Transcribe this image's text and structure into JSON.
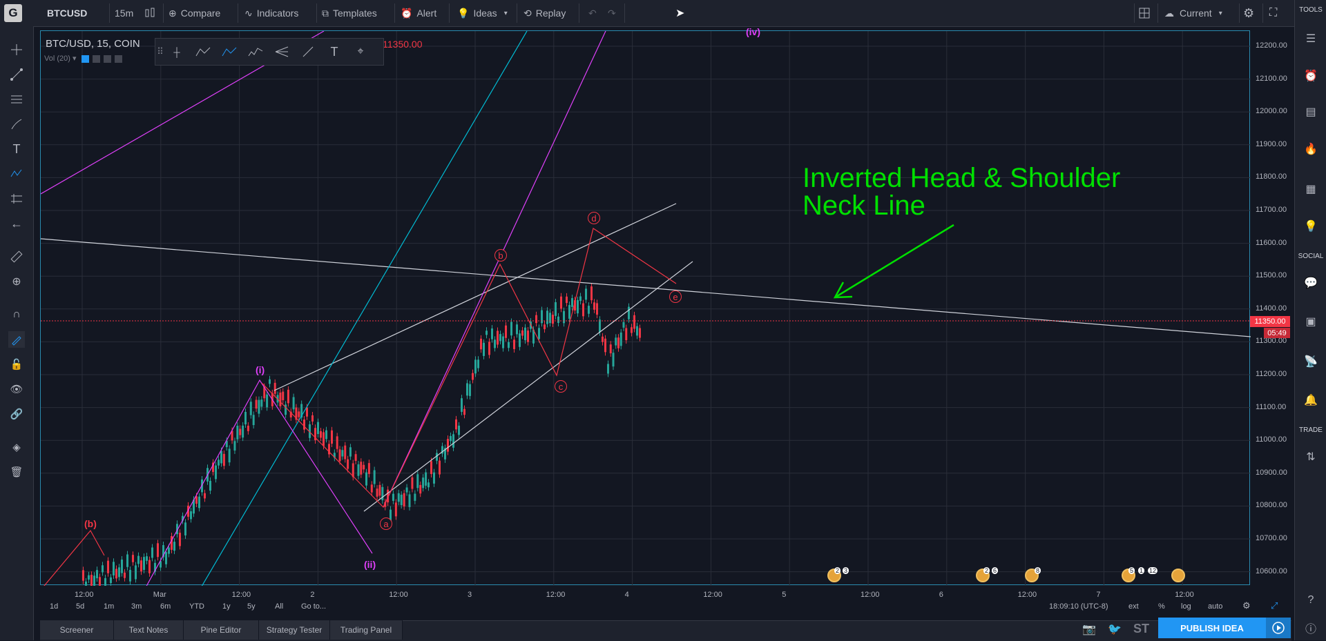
{
  "topbar": {
    "symbol": "BTCUSD",
    "interval": "15m",
    "compare": "Compare",
    "indicators": "Indicators",
    "templates": "Templates",
    "alert": "Alert",
    "ideas": "Ideas",
    "replay": "Replay",
    "layout": "Current"
  },
  "legend": {
    "title": "BTC/USD, 15, COIN",
    "close_prefix": "C",
    "close_value": "11350.00",
    "close_color": "#f23645",
    "volume": "Vol (20)"
  },
  "price_scale": [
    "12200.00",
    "12100.00",
    "12000.00",
    "11900.00",
    "11800.00",
    "11700.00",
    "11600.00",
    "11500.00",
    "11400.00",
    "11300.00",
    "11200.00",
    "11100.00",
    "11000.00",
    "10900.00",
    "10800.00",
    "10700.00",
    "10600.00"
  ],
  "last_price": "11350.00",
  "countdown": "05:49",
  "time_axis": [
    "12:00",
    "Mar",
    "12:00",
    "2",
    "12:00",
    "3",
    "12:00",
    "4",
    "12:00",
    "5",
    "12:00",
    "6",
    "12:00",
    "7",
    "12:00"
  ],
  "ranges": [
    "1d",
    "5d",
    "1m",
    "3m",
    "6m",
    "YTD",
    "1y",
    "5y",
    "All",
    "Go to..."
  ],
  "clock": "18:09:10 (UTC-8)",
  "scale_options": [
    "ext",
    "%",
    "log",
    "auto"
  ],
  "annotation": {
    "line1": "Inverted Head & Shoulder",
    "line2": "Neck Line",
    "color": "#00e000"
  },
  "waves": {
    "pink": [
      "(i)",
      "(ii)",
      "(iv)"
    ],
    "red_b": "(b)",
    "circled": [
      "a",
      "b",
      "c",
      "d",
      "e"
    ]
  },
  "event_badges": [
    "2",
    "3",
    "2",
    "6",
    "8",
    "5",
    "1",
    "12"
  ],
  "right_sections": {
    "tools": "TOOLS",
    "social": "SOCIAL",
    "trade": "TRADE"
  },
  "bottom_tabs": [
    "Screener",
    "Text Notes",
    "Pine Editor",
    "Strategy Tester",
    "Trading Panel"
  ],
  "bottom_right": {
    "st": "ST",
    "publish": "PUBLISH IDEA"
  },
  "colors": {
    "accent": "#2196f3",
    "bear": "#f23645",
    "bull": "#26a69a",
    "wave_pink": "#e040fb",
    "channel_cyan": "#00bcd4"
  }
}
